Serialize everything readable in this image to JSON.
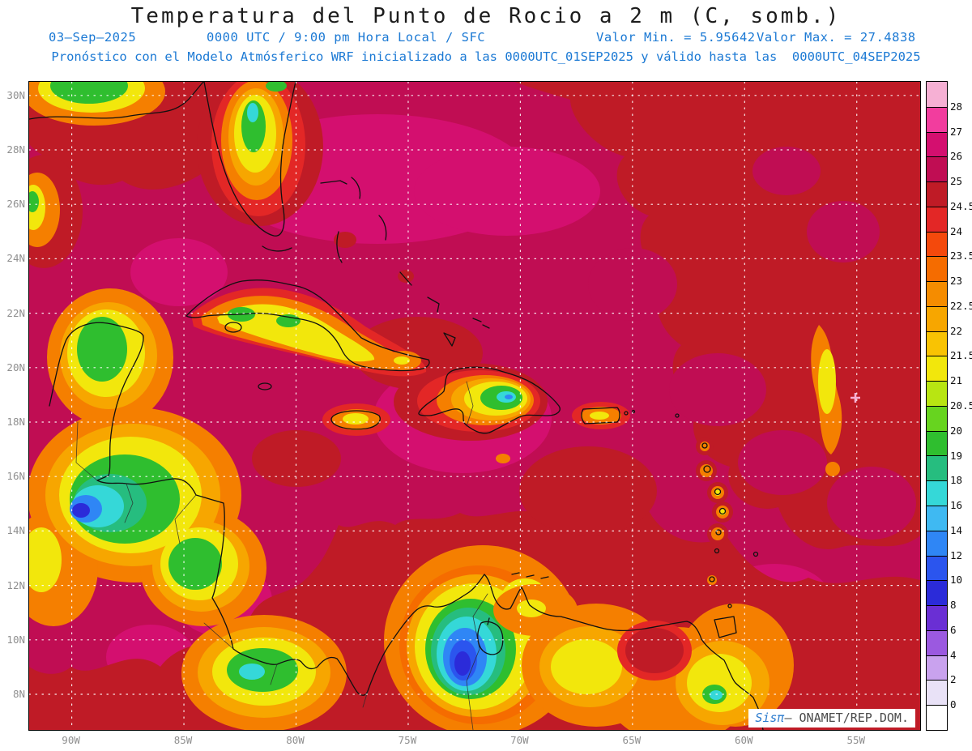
{
  "header": {
    "title": "Temperatura del Punto de Rocio a 2 m (C, somb.)",
    "line2": {
      "date": "03—Sep—2025",
      "time": "0000 UTC / 9:00 pm Hora Local / SFC",
      "min": "Valor Min. = 5.95642",
      "max": "Valor Max. = 27.4838"
    },
    "line3": "Pronóstico con el Modelo Atmósferico WRF inicializado a las 0000UTC_01SEP2025 y válido hasta las  0000UTC_04SEP2025"
  },
  "map": {
    "lat_labels": [
      "30N",
      "28N",
      "26N",
      "24N",
      "22N",
      "20N",
      "18N",
      "16N",
      "14N",
      "12N",
      "10N",
      "8N"
    ],
    "lon_labels": [
      "90W",
      "85W",
      "80W",
      "75W",
      "70W",
      "65W",
      "60W",
      "55W"
    ]
  },
  "colorbar": {
    "unit_boundaries": [
      0,
      2,
      4,
      6,
      8,
      10,
      12,
      14,
      16,
      18,
      19,
      20,
      20.5,
      21,
      21.5,
      22,
      22.5,
      23,
      23.5,
      24,
      24.5,
      25,
      26,
      27,
      28
    ],
    "labels_top_to_bottom": [
      "28",
      "27",
      "26",
      "25",
      "24.5",
      "24",
      "23.5",
      "23",
      "22.5",
      "22",
      "21.5",
      "21",
      "20.5",
      "20",
      "19",
      "18",
      "16",
      "14",
      "12",
      "10",
      "8",
      "6",
      "4",
      "2",
      "0"
    ],
    "colors_top_to_bottom": [
      "#f6b0d4",
      "#f23d9e",
      "#d40f6f",
      "#c00d53",
      "#bf1b26",
      "#e32726",
      "#f4490c",
      "#f56c00",
      "#f58c00",
      "#f7a600",
      "#f9c303",
      "#f2e70c",
      "#b8e512",
      "#67d41f",
      "#2fbe2f",
      "#26bd7f",
      "#35d8d8",
      "#3fb9f2",
      "#2f86f5",
      "#2b55ee",
      "#2b2bd9",
      "#6a2fd4",
      "#9b59e0",
      "#c9a2ee",
      "#e9e2f7",
      "#ffffff"
    ]
  },
  "watermark": {
    "brand": "Sisπ",
    "text": "— ONAMET/REP.DOM."
  }
}
